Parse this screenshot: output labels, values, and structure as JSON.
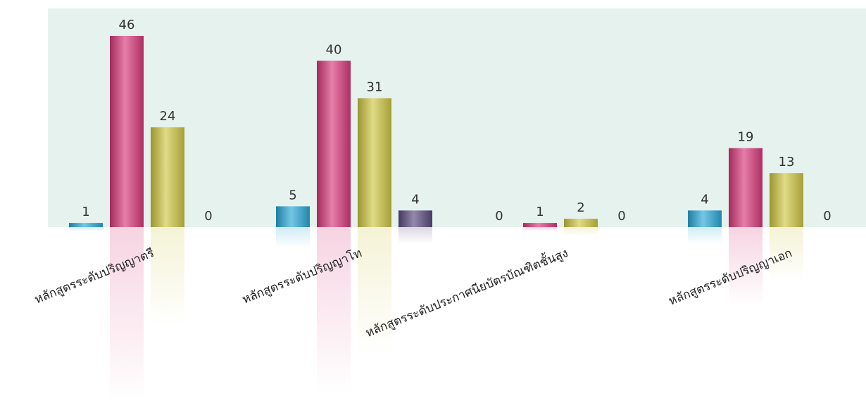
{
  "chart_data": {
    "type": "bar",
    "title": "",
    "xlabel": "",
    "ylabel": "",
    "ylim": [
      0,
      46
    ],
    "grid": false,
    "legend": "none",
    "categories": [
      "หลักสูตรระดับปริญญาตรี",
      "หลักสูตรระดับปริญญาโท",
      "หลักสูตรระดับประกาศนียบัตรบัณฑิตชั้นสูง",
      "หลักสูตรระดับปริญญาเอก"
    ],
    "series": [
      {
        "color": "#29a8d8",
        "values": [
          1,
          5,
          0,
          4
        ]
      },
      {
        "color": "#d9397a",
        "values": [
          46,
          40,
          1,
          19
        ]
      },
      {
        "color": "#cfc743",
        "values": [
          24,
          31,
          2,
          13
        ]
      },
      {
        "color": "#5b4a7e",
        "values": [
          0,
          4,
          0,
          0
        ]
      }
    ]
  }
}
